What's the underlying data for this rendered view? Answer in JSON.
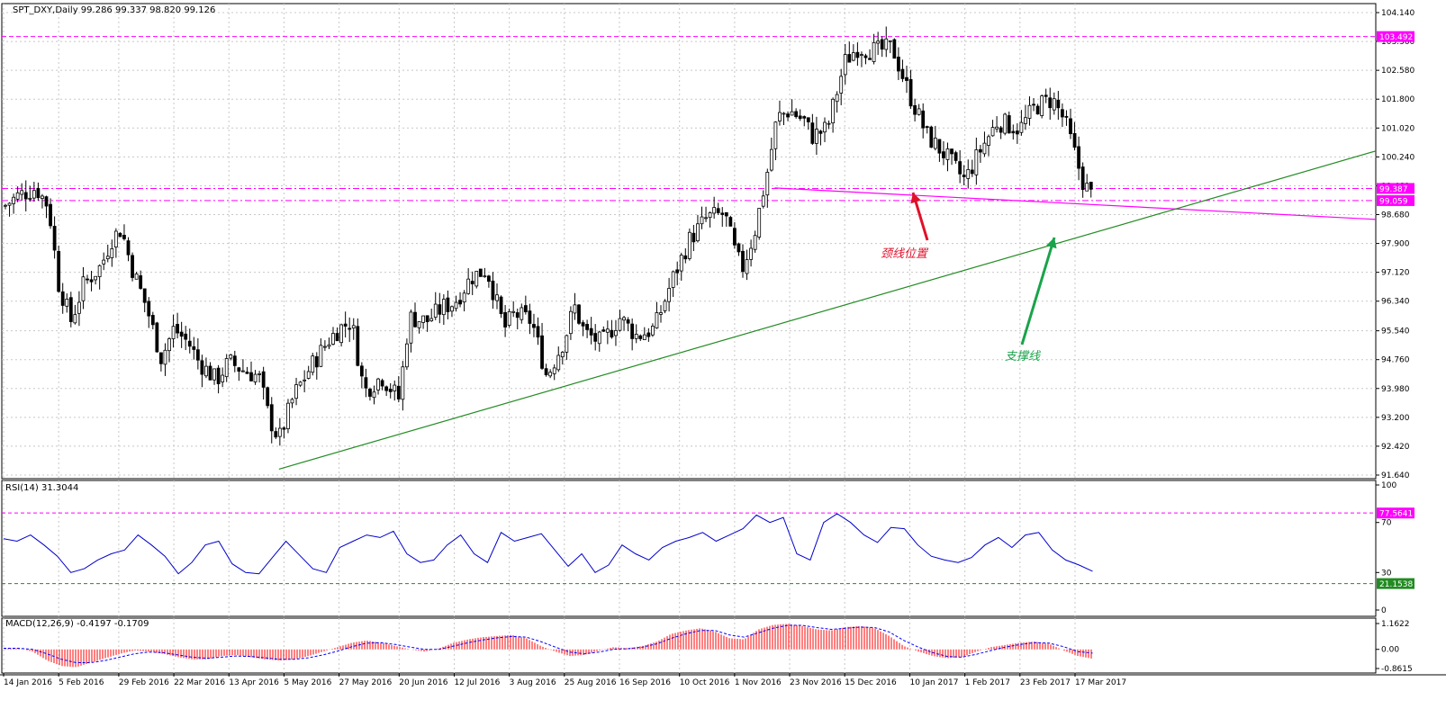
{
  "header": {
    "symbol_info": "SPT_DXY,Daily  99.286 99.337 98.820 99.126",
    "rsi_label": "RSI(14) 31.3044",
    "macd_label": "MACD(12,26,9) -0.4197 -0.1709"
  },
  "annotations": {
    "neckline": "颈线位置",
    "support": "支撑线"
  },
  "colors": {
    "bars": "#000000",
    "magenta": "#ff00ff",
    "support_line": "#228b22",
    "rsi": "#0000cd",
    "macd_hist": "#ff0000",
    "macd_signal": "#0000ff",
    "neck_arrow": "#e0102a",
    "support_arrow": "#1aa34a",
    "grid": "#c8c8c8"
  },
  "chart_data": [
    {
      "type": "candlestick",
      "title": "SPT_DXY,Daily",
      "ohlc_last": {
        "open": 99.286,
        "high": 99.337,
        "low": 98.82,
        "close": 99.126
      },
      "ylim": [
        91.64,
        104.14
      ],
      "y_ticks": [
        "104.140",
        "103.360",
        "102.580",
        "101.800",
        "101.020",
        "100.240",
        "99.460",
        "98.680",
        "97.900",
        "97.120",
        "96.340",
        "95.540",
        "94.760",
        "93.980",
        "93.200",
        "92.420",
        "91.640"
      ],
      "x_ticks": [
        "14 Jan 2016",
        "5 Feb 2016",
        "29 Feb 2016",
        "22 Mar 2016",
        "13 Apr 2016",
        "5 May 2016",
        "27 May 2016",
        "20 Jun 2016",
        "12 Jul 2016",
        "3 Aug 2016",
        "25 Aug 2016",
        "16 Sep 2016",
        "10 Oct 2016",
        "1 Nov 2016",
        "23 Nov 2016",
        "15 Dec 2016",
        "10 Jan 2017",
        "1 Feb 2017",
        "23 Feb 2017",
        "17 Mar 2017"
      ],
      "close_path": [
        [
          "14 Jan 2016",
          98.9
        ],
        [
          "20 Jan 2016",
          99.2
        ],
        [
          "27 Jan 2016",
          99.4
        ],
        [
          "1 Feb 2016",
          98.9
        ],
        [
          "5 Feb 2016",
          96.8
        ],
        [
          "10 Feb 2016",
          95.8
        ],
        [
          "15 Feb 2016",
          96.8
        ],
        [
          "22 Feb 2016",
          97.3
        ],
        [
          "26 Feb 2016",
          98.0
        ],
        [
          "1 Mar 2016",
          98.3
        ],
        [
          "5 Mar 2016",
          97.3
        ],
        [
          "11 Mar 2016",
          96.2
        ],
        [
          "17 Mar 2016",
          94.8
        ],
        [
          "22 Mar 2016",
          95.6
        ],
        [
          "28 Mar 2016",
          95.2
        ],
        [
          "1 Apr 2016",
          94.7
        ],
        [
          "8 Apr 2016",
          94.2
        ],
        [
          "13 Apr 2016",
          94.7
        ],
        [
          "18 Apr 2016",
          94.5
        ],
        [
          "25 Apr 2016",
          94.3
        ],
        [
          "29 Apr 2016",
          93.2
        ],
        [
          "3 May 2016",
          92.6
        ],
        [
          "9 May 2016",
          93.8
        ],
        [
          "16 May 2016",
          94.6
        ],
        [
          "23 May 2016",
          95.3
        ],
        [
          "27 May 2016",
          95.6
        ],
        [
          "1 Jun 2016",
          95.8
        ],
        [
          "6 Jun 2016",
          93.9
        ],
        [
          "13 Jun 2016",
          94.3
        ],
        [
          "20 Jun 2016",
          93.7
        ],
        [
          "24 Jun 2016",
          95.9
        ],
        [
          "1 Jul 2016",
          95.8
        ],
        [
          "8 Jul 2016",
          96.2
        ],
        [
          "12 Jul 2016",
          96.3
        ],
        [
          "19 Jul 2016",
          97.0
        ],
        [
          "25 Jul 2016",
          97.2
        ],
        [
          "1 Aug 2016",
          95.6
        ],
        [
          "5 Aug 2016",
          96.0
        ],
        [
          "12 Aug 2016",
          95.8
        ],
        [
          "18 Aug 2016",
          94.3
        ],
        [
          "25 Aug 2016",
          95.3
        ],
        [
          "29 Aug 2016",
          96.2
        ],
        [
          "2 Sep 2016",
          95.5
        ],
        [
          "9 Sep 2016",
          95.2
        ],
        [
          "16 Sep 2016",
          95.9
        ],
        [
          "23 Sep 2016",
          95.4
        ],
        [
          "30 Sep 2016",
          95.6
        ],
        [
          "7 Oct 2016",
          96.9
        ],
        [
          "14 Oct 2016",
          98.0
        ],
        [
          "21 Oct 2016",
          98.6
        ],
        [
          "28 Oct 2016",
          98.7
        ],
        [
          "1 Nov 2016",
          97.7
        ],
        [
          "4 Nov 2016",
          97.2
        ],
        [
          "9 Nov 2016",
          98.2
        ],
        [
          "14 Nov 2016",
          99.8
        ],
        [
          "18 Nov 2016",
          101.3
        ],
        [
          "23 Nov 2016",
          101.5
        ],
        [
          "29 Nov 2016",
          101.2
        ],
        [
          "2 Dec 2016",
          100.8
        ],
        [
          "8 Dec 2016",
          101.0
        ],
        [
          "15 Dec 2016",
          102.8
        ],
        [
          "20 Dec 2016",
          103.2
        ],
        [
          "28 Dec 2016",
          103.1
        ],
        [
          "3 Jan 2017",
          103.2
        ],
        [
          "10 Jan 2017",
          101.9
        ],
        [
          "17 Jan 2017",
          100.8
        ],
        [
          "24 Jan 2017",
          100.3
        ],
        [
          "1 Feb 2017",
          99.6
        ],
        [
          "7 Feb 2017",
          100.4
        ],
        [
          "14 Feb 2017",
          101.2
        ],
        [
          "23 Feb 2017",
          101.0
        ],
        [
          "1 Mar 2017",
          101.6
        ],
        [
          "8 Mar 2017",
          101.8
        ],
        [
          "13 Mar 2017",
          101.2
        ],
        [
          "17 Mar 2017",
          100.3
        ],
        [
          "20 Mar 2017",
          99.6
        ],
        [
          "24 Mar 2017",
          99.13
        ]
      ],
      "horizontal_levels": [
        {
          "value": 103.492,
          "label": "103.492"
        },
        {
          "value": 99.387,
          "label": "99.387"
        },
        {
          "value": 99.059,
          "label": "99.059"
        }
      ],
      "neckline": {
        "from": [
          "17 Nov 2016",
          99.4
        ],
        "to": [
          "beyond 17 Mar 2017",
          98.55
        ]
      },
      "support_trendline": {
        "from": [
          "3 May 2016",
          91.8
        ],
        "to": [
          "beyond 17 Mar 2017",
          100.4
        ]
      }
    },
    {
      "type": "line",
      "title": "RSI(14) 31.3044",
      "ylim": [
        0,
        100
      ],
      "y_ticks": [
        "100",
        "70",
        "30",
        "0"
      ],
      "levels": [
        {
          "value": 77.5641,
          "label": "77.5641"
        },
        {
          "value": 21.1538,
          "label": "21.1538"
        }
      ],
      "series": [
        {
          "values": [
            57,
            55,
            60,
            52,
            43,
            30,
            33,
            40,
            45,
            48,
            60,
            52,
            43,
            29,
            38,
            52,
            55,
            37,
            30,
            29,
            42,
            55,
            44,
            33,
            30,
            50,
            55,
            60,
            58,
            63,
            45,
            38,
            40,
            52,
            60,
            45,
            38,
            62,
            55,
            58,
            61,
            48,
            35,
            45,
            30,
            36,
            52,
            45,
            40,
            50,
            55,
            58,
            62,
            55,
            60,
            65,
            76,
            70,
            74,
            45,
            40,
            70,
            77,
            70,
            60,
            54,
            66,
            65,
            52,
            43,
            40,
            38,
            42,
            52,
            58,
            50,
            60,
            62,
            48,
            40,
            36,
            31
          ]
        }
      ]
    },
    {
      "type": "bar",
      "title": "MACD(12,26,9) -0.4197 -0.1709",
      "ylim": [
        -0.8615,
        1.1622
      ],
      "y_ticks": [
        "1.1622",
        "0.00",
        "-0.8615"
      ],
      "series": [
        {
          "name": "MACD",
          "values": [
            0.05,
            0.05,
            -0.1,
            -0.5,
            -0.75,
            -0.8,
            -0.6,
            -0.4,
            -0.2,
            -0.05,
            -0.1,
            -0.2,
            -0.35,
            -0.45,
            -0.45,
            -0.3,
            -0.25,
            -0.35,
            -0.45,
            -0.5,
            -0.45,
            -0.3,
            -0.1,
            0.1,
            0.3,
            0.4,
            0.3,
            0.15,
            0.0,
            -0.1,
            0.05,
            0.3,
            0.45,
            0.55,
            0.6,
            0.65,
            0.5,
            0.15,
            -0.1,
            -0.3,
            -0.25,
            -0.05,
            0.1,
            0.05,
            0.15,
            0.35,
            0.7,
            0.85,
            0.95,
            0.8,
            0.5,
            0.45,
            0.9,
            1.1,
            1.15,
            1.05,
            0.9,
            0.85,
            1.0,
            1.05,
            0.95,
            0.6,
            0.15,
            -0.1,
            -0.3,
            -0.4,
            -0.35,
            -0.1,
            0.1,
            0.2,
            0.3,
            0.35,
            0.25,
            -0.05,
            -0.3,
            -0.42
          ]
        },
        {
          "name": "Signal",
          "values": [
            0.05,
            0.05,
            0.0,
            -0.2,
            -0.45,
            -0.6,
            -0.6,
            -0.5,
            -0.35,
            -0.2,
            -0.12,
            -0.15,
            -0.25,
            -0.35,
            -0.4,
            -0.35,
            -0.3,
            -0.32,
            -0.38,
            -0.45,
            -0.45,
            -0.38,
            -0.25,
            -0.08,
            0.12,
            0.28,
            0.3,
            0.22,
            0.1,
            0.0,
            0.0,
            0.15,
            0.3,
            0.42,
            0.52,
            0.58,
            0.55,
            0.35,
            0.1,
            -0.12,
            -0.2,
            -0.12,
            0.0,
            0.03,
            0.1,
            0.25,
            0.5,
            0.7,
            0.85,
            0.85,
            0.65,
            0.55,
            0.75,
            0.95,
            1.08,
            1.08,
            0.98,
            0.9,
            0.95,
            1.0,
            0.98,
            0.78,
            0.4,
            0.1,
            -0.15,
            -0.32,
            -0.35,
            -0.22,
            -0.05,
            0.1,
            0.22,
            0.3,
            0.28,
            0.12,
            -0.1,
            -0.17
          ]
        }
      ]
    }
  ]
}
